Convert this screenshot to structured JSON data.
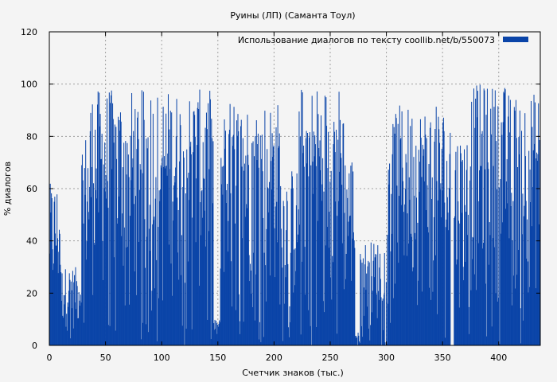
{
  "chart_data": {
    "type": "bar",
    "title": "Руины (ЛП) (Саманта Тоул)",
    "xlabel": "Счетчик знаков (тыс.)",
    "ylabel": "% диалогов",
    "legend": {
      "label": "Использование диалогов по тексту  coollib.net/b/550073",
      "position": "top-right"
    },
    "xlim": [
      0,
      437
    ],
    "ylim": [
      0,
      120
    ],
    "xticks": [
      "0",
      "50",
      "100",
      "150",
      "200",
      "250",
      "300",
      "350",
      "400"
    ],
    "yticks": [
      "0",
      "20",
      "40",
      "60",
      "80",
      "100",
      "120"
    ],
    "grid": true,
    "color": "#0a44a8",
    "segments": [
      {
        "x": [
          0,
          10
        ],
        "max": 62
      },
      {
        "x": [
          10,
          28
        ],
        "max": 30
      },
      {
        "x": [
          28,
          36
        ],
        "max": 82
      },
      {
        "x": [
          36,
          146
        ],
        "max": 98
      },
      {
        "x": [
          146,
          152
        ],
        "max": 10
      },
      {
        "x": [
          152,
          205
        ],
        "max": 94
      },
      {
        "x": [
          205,
          222
        ],
        "max": 68
      },
      {
        "x": [
          222,
          262
        ],
        "max": 100
      },
      {
        "x": [
          262,
          272
        ],
        "max": 74
      },
      {
        "x": [
          272,
          276
        ],
        "max": 5
      },
      {
        "x": [
          276,
          300
        ],
        "max": 40
      },
      {
        "x": [
          300,
          352
        ],
        "max": 92
      },
      {
        "x": [
          352,
          357
        ],
        "max": 82
      },
      {
        "x": [
          357,
          360
        ],
        "max": 0
      },
      {
        "x": [
          360,
          374
        ],
        "max": 82
      },
      {
        "x": [
          374,
          408
        ],
        "max": 100
      },
      {
        "x": [
          408,
          437
        ],
        "max": 97
      }
    ]
  }
}
